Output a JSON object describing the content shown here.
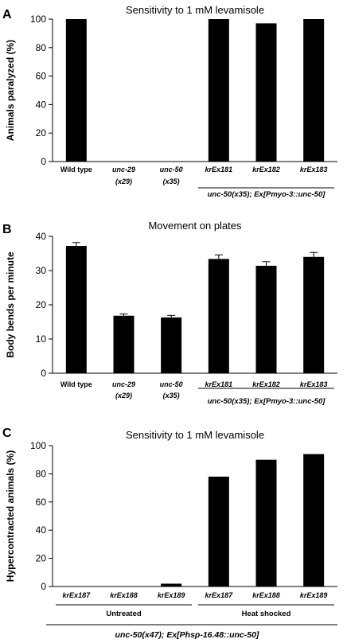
{
  "chart_data": [
    {
      "panel": "A",
      "type": "bar",
      "title": "Sensitivity to 1 mM levamisole",
      "ylabel": "Animals paralyzed  (%)",
      "ylim": [
        0,
        100
      ],
      "yticks": [
        0,
        20,
        40,
        60,
        80,
        100
      ],
      "categories": [
        {
          "line1": "Wild type",
          "line2": "",
          "italic": false
        },
        {
          "line1": "unc-29",
          "line2": "(x29)",
          "italic": true
        },
        {
          "line1": "unc-50",
          "line2": "(x35)",
          "italic": true
        },
        {
          "line1": "krEx181",
          "line2": "",
          "italic": true
        },
        {
          "line1": "krEx182",
          "line2": "",
          "italic": true
        },
        {
          "line1": "krEx183",
          "line2": "",
          "italic": true
        }
      ],
      "values": [
        100,
        0,
        0,
        100,
        97,
        100
      ],
      "errors": [
        0,
        0,
        0,
        0,
        0,
        0
      ],
      "groups": [
        {
          "label": "unc-50(x35); Ex[Pmyo-3::unc-50]",
          "from": 3,
          "to": 5,
          "italic": true
        }
      ],
      "bottom_label": ""
    },
    {
      "panel": "B",
      "type": "bar",
      "title": "Movement on plates",
      "ylabel": "Body bends per minute",
      "ylim": [
        0,
        40
      ],
      "yticks": [
        0,
        10,
        20,
        30,
        40
      ],
      "categories": [
        {
          "line1": "Wild type",
          "line2": "",
          "italic": false
        },
        {
          "line1": "unc-29",
          "line2": "(x29)",
          "italic": true
        },
        {
          "line1": "unc-50",
          "line2": "(x35)",
          "italic": true
        },
        {
          "line1": "krEx181",
          "line2": "",
          "italic": true
        },
        {
          "line1": "krEx182",
          "line2": "",
          "italic": true
        },
        {
          "line1": "krEx183",
          "line2": "",
          "italic": true
        }
      ],
      "values": [
        37.2,
        16.8,
        16.3,
        33.4,
        31.4,
        34.0
      ],
      "errors": [
        1.0,
        0.5,
        0.6,
        1.2,
        1.2,
        1.3
      ],
      "groups": [
        {
          "label": "unc-50(x35); Ex[Pmyo-3::unc-50]",
          "from": 3,
          "to": 5,
          "italic": true
        }
      ],
      "bottom_label": ""
    },
    {
      "panel": "C",
      "type": "bar",
      "title": "Sensitivity to 1 mM levamisole",
      "ylabel": "Hypercontracted animals  (%)",
      "ylim": [
        0,
        100
      ],
      "yticks": [
        0,
        20,
        40,
        60,
        80,
        100
      ],
      "categories": [
        {
          "line1": "krEx187",
          "line2": "",
          "italic": true
        },
        {
          "line1": "krEx188",
          "line2": "",
          "italic": true
        },
        {
          "line1": "krEx189",
          "line2": "",
          "italic": true
        },
        {
          "line1": "krEx187",
          "line2": "",
          "italic": true
        },
        {
          "line1": "krEx188",
          "line2": "",
          "italic": true
        },
        {
          "line1": "krEx189",
          "line2": "",
          "italic": true
        }
      ],
      "values": [
        0,
        0,
        2,
        78,
        90,
        94
      ],
      "errors": [
        0,
        0,
        0,
        0,
        0,
        0
      ],
      "groups": [
        {
          "label": "Untreated",
          "from": 0,
          "to": 2,
          "italic": false
        },
        {
          "label": "Heat shocked",
          "from": 3,
          "to": 5,
          "italic": false
        }
      ],
      "bottom_label": "unc-50(x47); Ex[Phsp-16.48::unc-50]"
    }
  ]
}
